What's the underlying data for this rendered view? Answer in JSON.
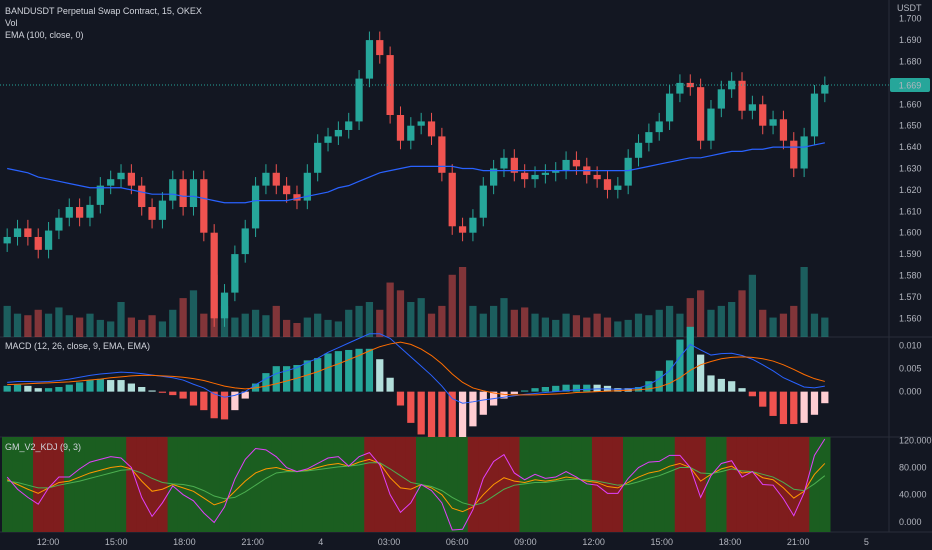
{
  "chart": {
    "title": "BANDUSDT Perpetual Swap Contract, 15, OKEX",
    "vol_label": "Vol",
    "ema_label": "EMA (100, close, 0)",
    "currency": "USDT",
    "last_price": "1.669"
  },
  "macd_label": "MACD (12, 26, close, 9, EMA, EMA)",
  "kdj_label": "GM_V2_KDJ (9, 3)",
  "colors": {
    "background": "#131722",
    "up": "#26a69a",
    "down": "#ef5350",
    "ema": "#2962ff",
    "last_price_badge": "#26a69a",
    "macd_line": "#2962ff",
    "signal_line": "#ff6d00",
    "kdj_bg_green": "#1b5e20",
    "kdj_bg_red": "#7f1d1d",
    "k_line": "#ff9800",
    "d_line": "#4caf50",
    "j_line": "#e040fb"
  },
  "chart_data": [
    {
      "type": "candlestick",
      "title": "BANDUSDT Perpetual Swap Contract, 15, OKEX",
      "ylabel": "USDT",
      "ylim": [
        1.555,
        1.705
      ],
      "y_ticks": [
        "1.700",
        "1.690",
        "1.680",
        "1.670",
        "1.660",
        "1.650",
        "1.640",
        "1.630",
        "1.620",
        "1.610",
        "1.600",
        "1.590",
        "1.580",
        "1.570",
        "1.560"
      ],
      "x_ticks": [
        "12:00",
        "15:00",
        "18:00",
        "21:00",
        "4",
        "03:00",
        "06:00",
        "09:00",
        "12:00",
        "15:00",
        "18:00",
        "21:00",
        "5"
      ],
      "last_price": 1.669,
      "close": [
        1.598,
        1.602,
        1.598,
        1.592,
        1.601,
        1.607,
        1.612,
        1.607,
        1.613,
        1.622,
        1.625,
        1.628,
        1.622,
        1.612,
        1.606,
        1.615,
        1.625,
        1.612,
        1.625,
        1.6,
        1.56,
        1.572,
        1.59,
        1.602,
        1.622,
        1.628,
        1.622,
        1.618,
        1.615,
        1.628,
        1.642,
        1.645,
        1.648,
        1.652,
        1.672,
        1.69,
        1.683,
        1.655,
        1.643,
        1.65,
        1.652,
        1.645,
        1.628,
        1.603,
        1.6,
        1.607,
        1.622,
        1.63,
        1.635,
        1.628,
        1.625,
        1.627,
        1.628,
        1.629,
        1.634,
        1.631,
        1.627,
        1.625,
        1.62,
        1.622,
        1.635,
        1.642,
        1.647,
        1.652,
        1.665,
        1.67,
        1.668,
        1.643,
        1.658,
        1.667,
        1.671,
        1.657,
        1.66,
        1.65,
        1.653,
        1.643,
        1.63,
        1.645,
        1.665,
        1.669
      ],
      "ema100": [
        1.63,
        1.629,
        1.628,
        1.626,
        1.625,
        1.624,
        1.623,
        1.622,
        1.621,
        1.621,
        1.621,
        1.621,
        1.62,
        1.619,
        1.618,
        1.618,
        1.618,
        1.617,
        1.617,
        1.616,
        1.615,
        1.614,
        1.614,
        1.614,
        1.615,
        1.615,
        1.615,
        1.615,
        1.616,
        1.617,
        1.618,
        1.619,
        1.621,
        1.622,
        1.624,
        1.626,
        1.628,
        1.629,
        1.63,
        1.631,
        1.631,
        1.631,
        1.631,
        1.631,
        1.63,
        1.63,
        1.629,
        1.629,
        1.629,
        1.629,
        1.629,
        1.629,
        1.629,
        1.629,
        1.629,
        1.629,
        1.629,
        1.629,
        1.629,
        1.629,
        1.629,
        1.63,
        1.631,
        1.632,
        1.633,
        1.634,
        1.635,
        1.635,
        1.636,
        1.637,
        1.638,
        1.638,
        1.639,
        1.639,
        1.64,
        1.64,
        1.64,
        1.64,
        1.641,
        1.642
      ],
      "volume": [
        40,
        30,
        28,
        35,
        30,
        38,
        28,
        25,
        30,
        22,
        20,
        45,
        25,
        22,
        28,
        20,
        35,
        50,
        60,
        30,
        80,
        40,
        25,
        30,
        35,
        28,
        40,
        22,
        18,
        25,
        30,
        22,
        20,
        35,
        40,
        45,
        35,
        70,
        60,
        45,
        50,
        30,
        40,
        80,
        90,
        40,
        30,
        40,
        50,
        35,
        38,
        30,
        25,
        22,
        30,
        28,
        25,
        30,
        25,
        20,
        22,
        30,
        28,
        35,
        40,
        30,
        50,
        60,
        35,
        40,
        45,
        60,
        80,
        35,
        25,
        30,
        40,
        90,
        30,
        25
      ]
    },
    {
      "type": "line",
      "title": "MACD (12, 26, close, 9, EMA, EMA)",
      "ylim": [
        -0.0098,
        0.0118
      ],
      "y_ticks": [
        "0.010",
        "0.005",
        "0.000"
      ],
      "series": [
        {
          "name": "MACD",
          "values": [
            0.002,
            0.0022,
            0.0022,
            0.0021,
            0.0022,
            0.0024,
            0.0027,
            0.0031,
            0.0035,
            0.0038,
            0.004,
            0.0042,
            0.0041,
            0.0039,
            0.0036,
            0.0033,
            0.003,
            0.0025,
            0.0016,
            0.0008,
            -0.0005,
            -0.0012,
            -0.0008,
            0.0,
            0.0015,
            0.0028,
            0.0039,
            0.0045,
            0.0052,
            0.0063,
            0.0072,
            0.0085,
            0.0095,
            0.0105,
            0.0115,
            0.0125,
            0.0125,
            0.0115,
            0.0095,
            0.0075,
            0.0055,
            0.0035,
            0.0012,
            -0.0015,
            -0.0025,
            -0.0022,
            -0.0018,
            -0.0015,
            -0.0012,
            -0.0009,
            -0.0006,
            -0.0004,
            -0.0002,
            0.0,
            0.0002,
            0.0004,
            0.0005,
            0.0006,
            0.0006,
            0.0005,
            0.0006,
            0.0008,
            0.0015,
            0.0028,
            0.0045,
            0.0075,
            0.0102,
            0.009,
            0.0079,
            0.0082,
            0.0083,
            0.0078,
            0.007,
            0.0058,
            0.0045,
            0.003,
            0.002,
            0.001,
            0.0008,
            0.0012
          ]
        },
        {
          "name": "Signal",
          "values": [
            0.0015,
            0.0016,
            0.0017,
            0.0018,
            0.0019,
            0.002,
            0.0021,
            0.0023,
            0.0025,
            0.0027,
            0.003,
            0.0032,
            0.0034,
            0.0035,
            0.0035,
            0.0034,
            0.0033,
            0.0031,
            0.0028,
            0.0024,
            0.0018,
            0.0012,
            0.0008,
            0.0006,
            0.0008,
            0.0012,
            0.0017,
            0.0023,
            0.0029,
            0.0036,
            0.0043,
            0.0052,
            0.006,
            0.0069,
            0.0078,
            0.0088,
            0.0097,
            0.0103,
            0.0107,
            0.0102,
            0.0092,
            0.0078,
            0.006,
            0.0038,
            0.002,
            0.0008,
            0.0002,
            -0.0003,
            -0.0006,
            -0.0007,
            -0.0007,
            -0.0007,
            -0.0006,
            -0.0005,
            -0.0004,
            -0.0002,
            -0.0001,
            0.0,
            0.0001,
            0.0002,
            0.0003,
            0.0004,
            0.0006,
            0.001,
            0.0018,
            0.003,
            0.0046,
            0.0058,
            0.0065,
            0.0071,
            0.0074,
            0.0075,
            0.0074,
            0.0071,
            0.0066,
            0.0058,
            0.0048,
            0.0037,
            0.0028,
            0.0022
          ]
        }
      ]
    },
    {
      "type": "line",
      "title": "GM_V2_KDJ (9, 3)",
      "ylim": [
        -15,
        125
      ],
      "y_ticks": [
        "120.000",
        "80.000",
        "40.000",
        "0.000"
      ],
      "regime": [
        "g",
        "g",
        "g",
        "r",
        "r",
        "r",
        "g",
        "g",
        "g",
        "g",
        "g",
        "g",
        "r",
        "r",
        "r",
        "r",
        "g",
        "g",
        "g",
        "g",
        "g",
        "g",
        "g",
        "g",
        "g",
        "g",
        "g",
        "g",
        "g",
        "g",
        "g",
        "g",
        "g",
        "g",
        "g",
        "r",
        "r",
        "r",
        "r",
        "r",
        "g",
        "g",
        "g",
        "g",
        "g",
        "r",
        "r",
        "r",
        "r",
        "r",
        "g",
        "g",
        "g",
        "g",
        "g",
        "g",
        "g",
        "r",
        "r",
        "r",
        "g",
        "g",
        "g",
        "g",
        "g",
        "r",
        "r",
        "r",
        "g",
        "g",
        "r",
        "r",
        "r",
        "r",
        "r",
        "r",
        "r",
        "r",
        "g",
        "g"
      ],
      "series": [
        {
          "name": "K",
          "values": [
            62,
            55,
            48,
            42,
            50,
            58,
            60,
            66,
            72,
            76,
            80,
            82,
            78,
            60,
            45,
            48,
            55,
            50,
            45,
            35,
            25,
            30,
            45,
            60,
            72,
            78,
            80,
            76,
            74,
            76,
            80,
            84,
            86,
            82,
            88,
            92,
            86,
            65,
            50,
            48,
            55,
            50,
            40,
            20,
            15,
            22,
            40,
            55,
            65,
            60,
            58,
            62,
            60,
            62,
            66,
            64,
            60,
            58,
            52,
            50,
            58,
            66,
            72,
            75,
            82,
            86,
            80,
            60,
            70,
            78,
            82,
            72,
            74,
            65,
            62,
            50,
            35,
            45,
            70,
            86
          ]
        },
        {
          "name": "D",
          "values": [
            60,
            58,
            54,
            50,
            50,
            54,
            57,
            60,
            64,
            68,
            72,
            76,
            77,
            72,
            64,
            58,
            56,
            55,
            52,
            46,
            38,
            34,
            36,
            44,
            54,
            64,
            72,
            74,
            74,
            75,
            77,
            79,
            81,
            82,
            84,
            87,
            87,
            78,
            68,
            58,
            55,
            52,
            46,
            36,
            28,
            24,
            28,
            38,
            48,
            54,
            56,
            58,
            58,
            60,
            62,
            63,
            62,
            60,
            57,
            54,
            55,
            59,
            64,
            68,
            74,
            80,
            80,
            72,
            71,
            74,
            78,
            75,
            74,
            70,
            66,
            58,
            48,
            46,
            56,
            68
          ]
        },
        {
          "name": "J",
          "values": [
            66,
            48,
            36,
            26,
            50,
            66,
            66,
            78,
            88,
            92,
            96,
            94,
            80,
            36,
            8,
            28,
            53,
            40,
            31,
            13,
            -1,
            22,
            63,
            92,
            108,
            106,
            96,
            80,
            74,
            78,
            86,
            94,
            96,
            82,
            96,
            102,
            84,
            40,
            14,
            28,
            55,
            46,
            28,
            -12,
            -11,
            18,
            64,
            89,
            99,
            72,
            62,
            70,
            64,
            66,
            74,
            66,
            56,
            54,
            42,
            42,
            64,
            80,
            88,
            89,
            98,
            98,
            80,
            36,
            68,
            86,
            90,
            66,
            74,
            55,
            54,
            34,
            9,
            43,
            98,
            122
          ]
        }
      ]
    }
  ]
}
